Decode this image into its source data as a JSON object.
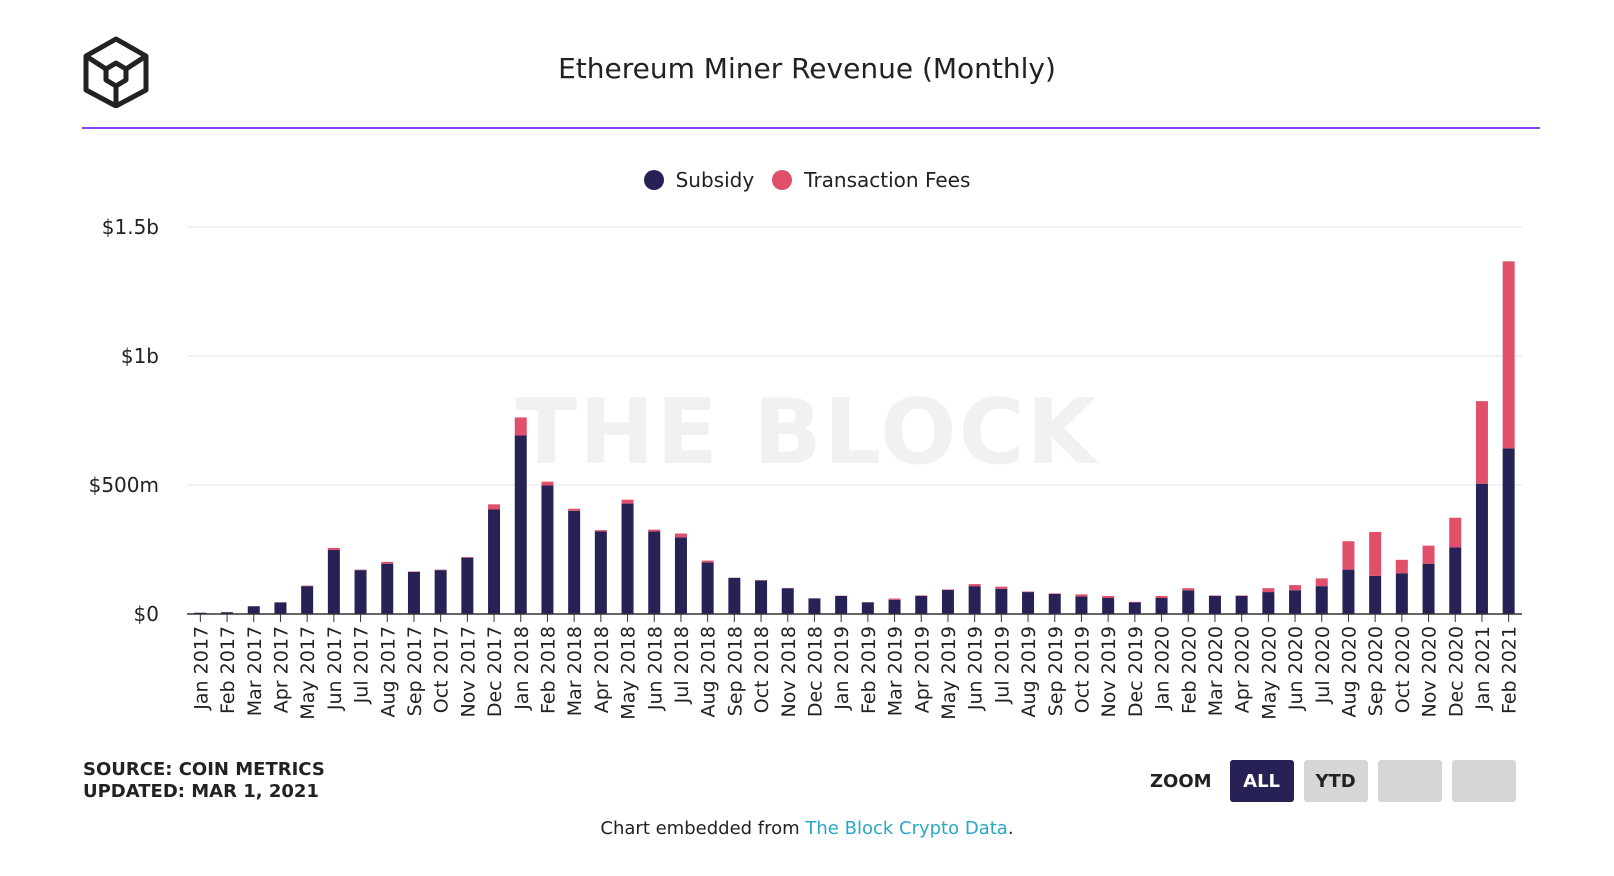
{
  "header": {
    "title": "Ethereum Miner Revenue (Monthly)",
    "watermark": "THE BLOCK"
  },
  "source_block": {
    "source": "SOURCE: COIN METRICS",
    "updated": "UPDATED: MAR 1, 2021"
  },
  "zoom": {
    "label": "ZOOM",
    "buttons": [
      "ALL",
      "YTD",
      "",
      ""
    ],
    "active": "ALL"
  },
  "footer": {
    "prefix": "Chart embedded from ",
    "link_text": "The Block Crypto Data",
    "suffix": "."
  },
  "colors": {
    "subsidy": "#262256",
    "fees": "#e0506a",
    "accent": "#8a3ff0",
    "link": "#29a8c4"
  },
  "chart_data": {
    "type": "bar",
    "stacked": true,
    "title": "Ethereum Miner Revenue (Monthly)",
    "legend": [
      "Subsidy",
      "Transaction Fees"
    ],
    "legend_position": "top-center",
    "yticks": [
      {
        "value": 0,
        "label": "$0"
      },
      {
        "value": 500,
        "label": "$500m"
      },
      {
        "value": 1000,
        "label": "$1b"
      },
      {
        "value": 1500,
        "label": "$1.5b"
      }
    ],
    "ylim": [
      0,
      1500
    ],
    "yunit": "USD millions",
    "categories": [
      "Jan 2017",
      "Feb 2017",
      "Mar 2017",
      "Apr 2017",
      "May 2017",
      "Jun 2017",
      "Jul 2017",
      "Aug 2017",
      "Sep 2017",
      "Oct 2017",
      "Nov 2017",
      "Dec 2017",
      "Jan 2018",
      "Feb 2018",
      "Mar 2018",
      "Apr 2018",
      "May 2018",
      "Jun 2018",
      "Jul 2018",
      "Aug 2018",
      "Sep 2018",
      "Oct 2018",
      "Nov 2018",
      "Dec 2018",
      "Jan 2019",
      "Feb 2019",
      "Mar 2019",
      "Apr 2019",
      "May 2019",
      "Jun 2019",
      "Jul 2019",
      "Aug 2019",
      "Sep 2019",
      "Oct 2019",
      "Nov 2019",
      "Dec 2019",
      "Jan 2020",
      "Feb 2020",
      "Mar 2020",
      "Apr 2020",
      "May 2020",
      "Jun 2020",
      "Jul 2020",
      "Aug 2020",
      "Sep 2020",
      "Oct 2020",
      "Nov 2020",
      "Dec 2020",
      "Jan 2021",
      "Feb 2021"
    ],
    "series": [
      {
        "name": "Subsidy",
        "values": [
          5,
          7,
          30,
          45,
          108,
          248,
          170,
          195,
          163,
          170,
          218,
          405,
          692,
          498,
          400,
          320,
          428,
          320,
          297,
          200,
          140,
          130,
          100,
          60,
          70,
          45,
          55,
          70,
          93,
          108,
          98,
          85,
          78,
          68,
          62,
          45,
          62,
          92,
          70,
          70,
          85,
          92,
          108,
          172,
          148,
          158,
          195,
          258,
          505,
          642
        ]
      },
      {
        "name": "Transaction Fees",
        "values": [
          0,
          0,
          0,
          0,
          2,
          8,
          2,
          7,
          2,
          2,
          3,
          20,
          70,
          15,
          8,
          5,
          15,
          7,
          15,
          7,
          1,
          1,
          1,
          1,
          1,
          1,
          5,
          2,
          2,
          8,
          8,
          2,
          2,
          8,
          8,
          2,
          8,
          8,
          2,
          2,
          15,
          20,
          30,
          110,
          170,
          52,
          70,
          115,
          320,
          725
        ]
      }
    ]
  }
}
